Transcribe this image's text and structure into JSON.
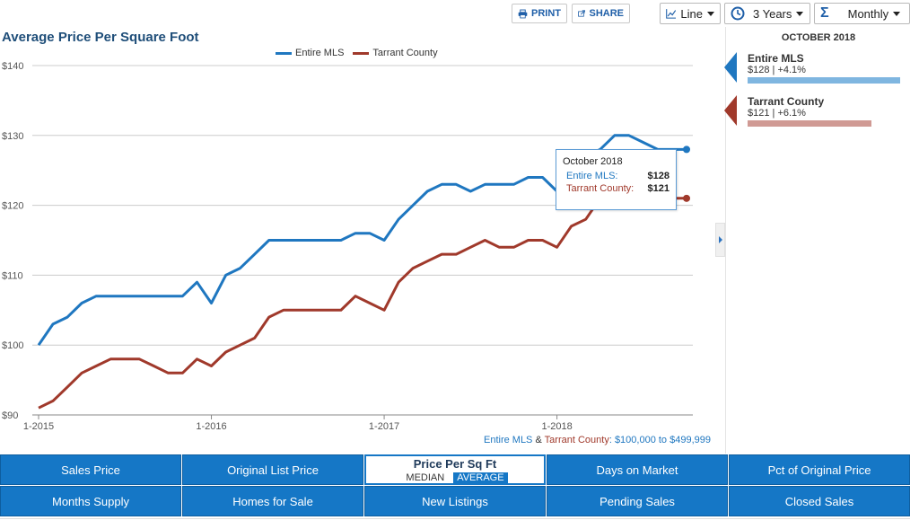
{
  "toolbar": {
    "print_label": "PRINT",
    "share_label": "SHARE",
    "chart_type": "Line",
    "range": "3 Years",
    "interval": "Monthly"
  },
  "colors": {
    "series_mls": "#1f77c0",
    "series_tarrant": "#a0392b",
    "tab_blue": "#1577c6",
    "bar_mls": "#7fb6e0",
    "bar_tarrant": "#d09a94"
  },
  "tooltip": {
    "title": "October 2018",
    "mls_label": "Entire MLS:",
    "mls_value": "$128",
    "tarrant_label": "Tarrant County:",
    "tarrant_value": "$121"
  },
  "footnote": {
    "mls": "Entire MLS",
    "amp": " & ",
    "tarrant": "Tarrant County",
    "range": ": $100,000 to $499,999"
  },
  "panel": {
    "date": "OCTOBER 2018",
    "stats": [
      {
        "name": "Entire MLS",
        "value": "$128 | +4.1%",
        "change_pct": 4.1
      },
      {
        "name": "Tarrant County",
        "value": "$121 | +6.1%",
        "change_pct": 6.1
      }
    ]
  },
  "tabs": {
    "row1": [
      "Sales Price",
      "Original List Price",
      "Price Per Sq Ft",
      "Days on Market",
      "Pct of Original Price"
    ],
    "row2": [
      "Months Supply",
      "Homes for Sale",
      "New Listings",
      "Pending Sales",
      "Closed Sales"
    ],
    "active_modes": [
      "MEDIAN",
      "AVERAGE"
    ],
    "active_mode_selected": "AVERAGE"
  },
  "chart_data": {
    "type": "line",
    "title": "Average Price Per Square Foot",
    "xlabel": "",
    "ylabel": "",
    "ylim": [
      90,
      140
    ],
    "yticks": [
      90,
      100,
      110,
      120,
      130,
      140
    ],
    "ytick_labels": [
      "$90",
      "$100",
      "$110",
      "$120",
      "$130",
      "$140"
    ],
    "xtick_labels": [
      "1-2015",
      "1-2016",
      "1-2017",
      "1-2018"
    ],
    "xtick_index": [
      0,
      12,
      24,
      36
    ],
    "grid": true,
    "legend_position": "top-center",
    "months": [
      "2015-01",
      "2015-02",
      "2015-03",
      "2015-04",
      "2015-05",
      "2015-06",
      "2015-07",
      "2015-08",
      "2015-09",
      "2015-10",
      "2015-11",
      "2015-12",
      "2016-01",
      "2016-02",
      "2016-03",
      "2016-04",
      "2016-05",
      "2016-06",
      "2016-07",
      "2016-08",
      "2016-09",
      "2016-10",
      "2016-11",
      "2016-12",
      "2017-01",
      "2017-02",
      "2017-03",
      "2017-04",
      "2017-05",
      "2017-06",
      "2017-07",
      "2017-08",
      "2017-09",
      "2017-10",
      "2017-11",
      "2017-12",
      "2018-01",
      "2018-02",
      "2018-03",
      "2018-04",
      "2018-05",
      "2018-06",
      "2018-07",
      "2018-08",
      "2018-09",
      "2018-10"
    ],
    "series": [
      {
        "name": "Entire MLS",
        "values": [
          100,
          103,
          104,
          106,
          107,
          107,
          107,
          107,
          107,
          107,
          107,
          109,
          106,
          110,
          111,
          113,
          115,
          115,
          115,
          115,
          115,
          115,
          116,
          116,
          115,
          118,
          120,
          122,
          123,
          123,
          122,
          123,
          123,
          123,
          124,
          124,
          122,
          124,
          127,
          128,
          130,
          130,
          129,
          128,
          128,
          128
        ]
      },
      {
        "name": "Tarrant County",
        "values": [
          91,
          92,
          94,
          96,
          97,
          98,
          98,
          98,
          97,
          96,
          96,
          98,
          97,
          99,
          100,
          101,
          104,
          105,
          105,
          105,
          105,
          105,
          107,
          106,
          105,
          109,
          111,
          112,
          113,
          113,
          114,
          115,
          114,
          114,
          115,
          115,
          114,
          117,
          118,
          121,
          122,
          122,
          121,
          121,
          121,
          121
        ]
      }
    ]
  }
}
